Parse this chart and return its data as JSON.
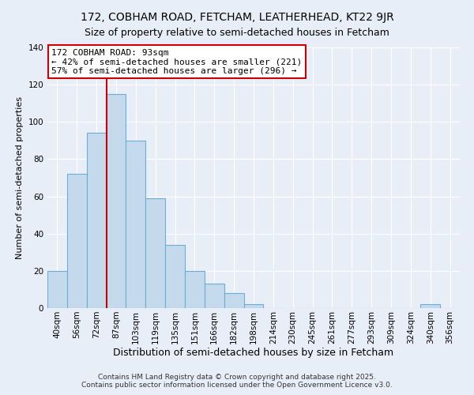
{
  "title": "172, COBHAM ROAD, FETCHAM, LEATHERHEAD, KT22 9JR",
  "subtitle": "Size of property relative to semi-detached houses in Fetcham",
  "xlabel": "Distribution of semi-detached houses by size in Fetcham",
  "ylabel": "Number of semi-detached properties",
  "categories": [
    "40sqm",
    "56sqm",
    "72sqm",
    "87sqm",
    "103sqm",
    "119sqm",
    "135sqm",
    "151sqm",
    "166sqm",
    "182sqm",
    "198sqm",
    "214sqm",
    "230sqm",
    "245sqm",
    "261sqm",
    "277sqm",
    "293sqm",
    "309sqm",
    "324sqm",
    "340sqm",
    "356sqm"
  ],
  "values": [
    20,
    72,
    94,
    115,
    90,
    59,
    34,
    20,
    13,
    8,
    2,
    0,
    0,
    0,
    0,
    0,
    0,
    0,
    0,
    2,
    0
  ],
  "bar_color": "#c5d9ed",
  "bar_edge_color": "#6aaed6",
  "ylim": [
    0,
    140
  ],
  "yticks": [
    0,
    20,
    40,
    60,
    80,
    100,
    120,
    140
  ],
  "vline_x": 2.5,
  "vline_color": "#cc0000",
  "annotation_title": "172 COBHAM ROAD: 93sqm",
  "annotation_line1": "← 42% of semi-detached houses are smaller (221)",
  "annotation_line2": "57% of semi-detached houses are larger (296) →",
  "annotation_box_facecolor": "#ffffff",
  "annotation_box_edgecolor": "#cc0000",
  "footer1": "Contains HM Land Registry data © Crown copyright and database right 2025.",
  "footer2": "Contains public sector information licensed under the Open Government Licence v3.0.",
  "bg_color": "#e8eef8",
  "grid_color": "#ffffff",
  "title_fontsize": 10,
  "subtitle_fontsize": 9,
  "xlabel_fontsize": 9,
  "ylabel_fontsize": 8,
  "tick_fontsize": 7.5,
  "annotation_fontsize": 8,
  "footer_fontsize": 6.5
}
